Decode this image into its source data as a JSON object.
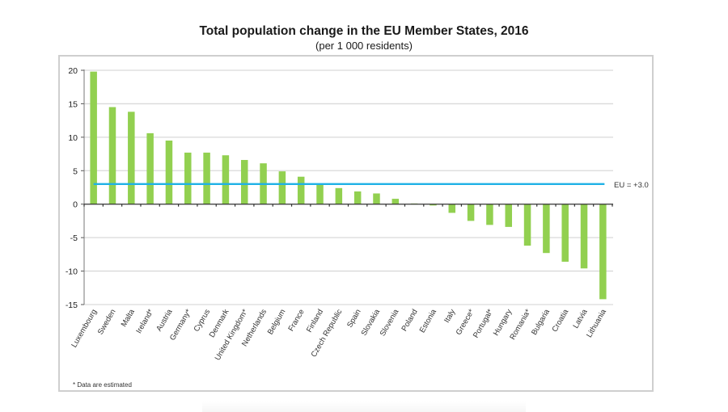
{
  "chart_data": {
    "type": "bar",
    "title": "Total population change in the EU Member States, 2016",
    "subtitle": "(per 1 000 residents)",
    "xlabel": "",
    "ylabel": "",
    "ylim": [
      -15,
      20
    ],
    "yticks": [
      20,
      15,
      10,
      5,
      0,
      -5,
      -10,
      -15
    ],
    "grid": true,
    "categories": [
      "Luxembourg",
      "Sweden",
      "Malta",
      "Ireland*",
      "Austria",
      "Germany*",
      "Cyprus",
      "Denmark",
      "United Kingdom*",
      "Netherlands",
      "Belgium",
      "France",
      "Finland",
      "Czech Republic",
      "Spain",
      "Slovakia",
      "Slovenia",
      "Poland",
      "Estonia",
      "Italy",
      "Greece*",
      "Portugal*",
      "Hungary",
      "Romania*",
      "Bulgaria",
      "Croatia",
      "Latvia",
      "Lithuania"
    ],
    "values": [
      19.8,
      14.5,
      13.8,
      10.6,
      9.5,
      7.7,
      7.7,
      7.3,
      6.6,
      6.1,
      4.9,
      4.1,
      2.9,
      2.4,
      1.9,
      1.6,
      0.8,
      0.1,
      -0.2,
      -1.3,
      -2.5,
      -3.1,
      -3.4,
      -6.2,
      -7.3,
      -8.6,
      -9.6,
      -14.2
    ],
    "bar_color": "#92d050",
    "reference_line": {
      "label": "EU = +3.0",
      "value": 3.0,
      "color": "#1fb1e6"
    },
    "footnote": "* Data are estimated"
  }
}
